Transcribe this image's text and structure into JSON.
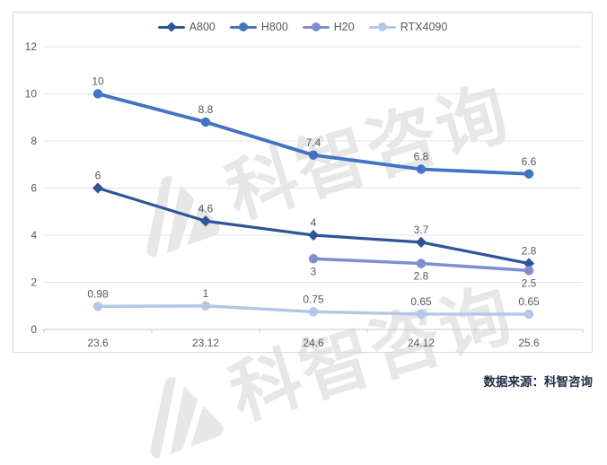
{
  "watermark": {
    "text": "科智咨询"
  },
  "source_note": "数据来源：科智咨询",
  "chart_data": {
    "type": "line",
    "categories": [
      "23.6",
      "23.12",
      "24.6",
      "24.12",
      "25.6"
    ],
    "series": [
      {
        "name": "A800",
        "color": "#2F5597",
        "marker": "diamond",
        "line_width": 3.2,
        "values": [
          6,
          4.6,
          4,
          3.7,
          2.8
        ],
        "label_position": "above"
      },
      {
        "name": "H800",
        "color": "#4472C4",
        "marker": "circle",
        "line_width": 3.8,
        "values": [
          10,
          8.8,
          7.4,
          6.8,
          6.6
        ],
        "label_position": "above"
      },
      {
        "name": "H20",
        "color": "#7D8FD2",
        "marker": "circle",
        "line_width": 3.5,
        "values": [
          null,
          null,
          3,
          2.8,
          2.5
        ],
        "label_position": "below"
      },
      {
        "name": "RTX4090",
        "color": "#B4C7E7",
        "marker": "circle",
        "line_width": 3.5,
        "values": [
          0.98,
          1,
          0.75,
          0.65,
          0.65
        ],
        "label_position": "above"
      }
    ],
    "ylim": [
      0,
      12
    ],
    "ytick_interval": 2,
    "yticks": [
      0,
      2,
      4,
      6,
      8,
      10,
      12
    ],
    "grid": true,
    "legend_position": "top",
    "title": "",
    "xlabel": "",
    "ylabel": "",
    "colors": {
      "gridline": "#e4e4e4",
      "axis": "#c9c9c9",
      "tick_label": "#595959",
      "data_label": "#595959",
      "watermark": "#e7e7e7"
    }
  }
}
